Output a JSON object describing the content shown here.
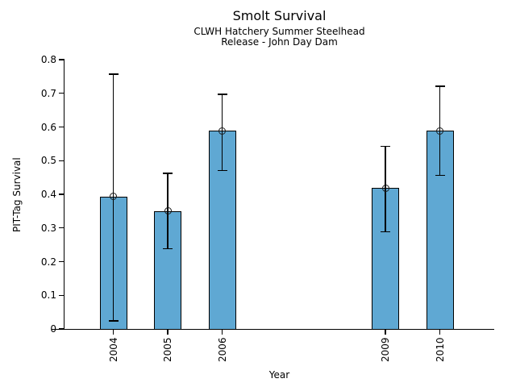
{
  "header": {
    "title": "Smolt Survival",
    "subtitle1": "CLWH Hatchery Summer Steelhead",
    "subtitle2": "Release - John Day Dam"
  },
  "chart_data": {
    "type": "bar",
    "title": "Smolt Survival",
    "subtitle": [
      "CLWH Hatchery Summer Steelhead",
      "Release - John Day Dam"
    ],
    "xlabel": "Year",
    "ylabel": "PIT-Tag Survival",
    "categories": [
      "2004",
      "2005",
      "2006",
      "2009",
      "2010"
    ],
    "x": [
      2004,
      2005,
      2006,
      2009,
      2010
    ],
    "values": [
      0.393,
      0.35,
      0.589,
      0.418,
      0.589
    ],
    "error_low": [
      0.024,
      0.238,
      0.471,
      0.288,
      0.457
    ],
    "error_high": [
      0.757,
      0.462,
      0.697,
      0.543,
      0.721
    ],
    "xlim": [
      2003.1,
      2011.0
    ],
    "ylim": [
      0,
      0.8
    ],
    "yticks": [
      0,
      0.1,
      0.2,
      0.3,
      0.4,
      0.5,
      0.6,
      0.7,
      0.8
    ],
    "ytick_labels": [
      "0",
      "0.1",
      "0.2",
      "0.3",
      "0.4",
      "0.5",
      "0.6",
      "0.7",
      "0.8"
    ],
    "grid": false,
    "legend": false,
    "marker": "open-circle",
    "bar_color": "#5FA8D3",
    "bar_edge_color": "#000000",
    "error_color": "#000000",
    "background_color": "#ffffff"
  }
}
